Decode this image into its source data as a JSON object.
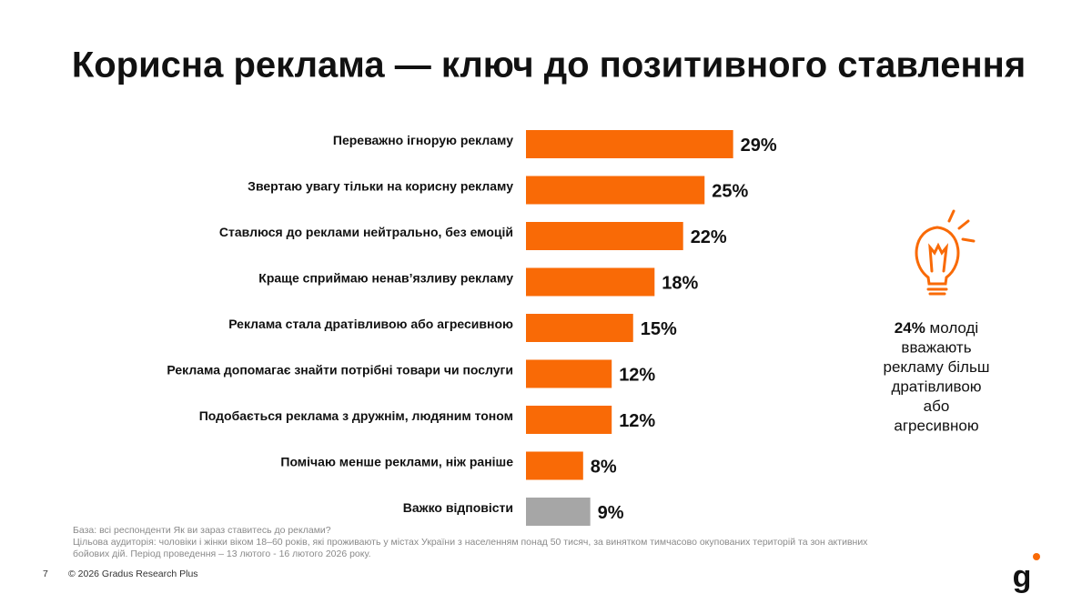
{
  "chart_data": {
    "type": "bar",
    "orientation": "horizontal",
    "title": "Корисна реклама — ключ до позитивного ставлення",
    "categories": [
      "Переважно ігнорую рекламу",
      "Звертаю увагу тільки на корисну рекламу",
      "Ставлюся до реклами нейтрально, без емоцій",
      "Краще сприймаю ненав’язливу рекламу",
      "Реклама стала дратівливою або агресивною",
      "Реклама допомагає знайти потрібні товари чи послуги",
      "Подобається реклама з дружнім, людяним тоном",
      "Помічаю менше реклами, ніж раніше",
      "Важко відповісти"
    ],
    "values": [
      29,
      25,
      22,
      18,
      15,
      12,
      12,
      8,
      9
    ],
    "value_labels": [
      "29%",
      "25%",
      "22%",
      "18%",
      "15%",
      "12%",
      "12%",
      "8%",
      "9%"
    ],
    "colors": [
      "#f96a06",
      "#f96a06",
      "#f96a06",
      "#f96a06",
      "#f96a06",
      "#f96a06",
      "#f96a06",
      "#f96a06",
      "#a6a6a6"
    ],
    "note": {
      "highlight": "24%",
      "lines": [
        "молоді",
        "вважають",
        "рекламу більш",
        "дратівливою",
        "або",
        "агресивною"
      ]
    }
  },
  "footer": {
    "base": "База: всі респонденти Як ви зараз ставитесь до реклами?",
    "audience": "Цільова аудиторія: чоловіки і жінки віком 18–60 років, які проживають у містах України з населенням понад 50 тисяч, за винятком тимчасово окупованих територій та зон активних бойових дій. Період проведення – 13 лютого - 16 лютого 2026 року.",
    "page": "7",
    "copyright": "© 2026 Gradus Research Plus",
    "logo": "g"
  }
}
